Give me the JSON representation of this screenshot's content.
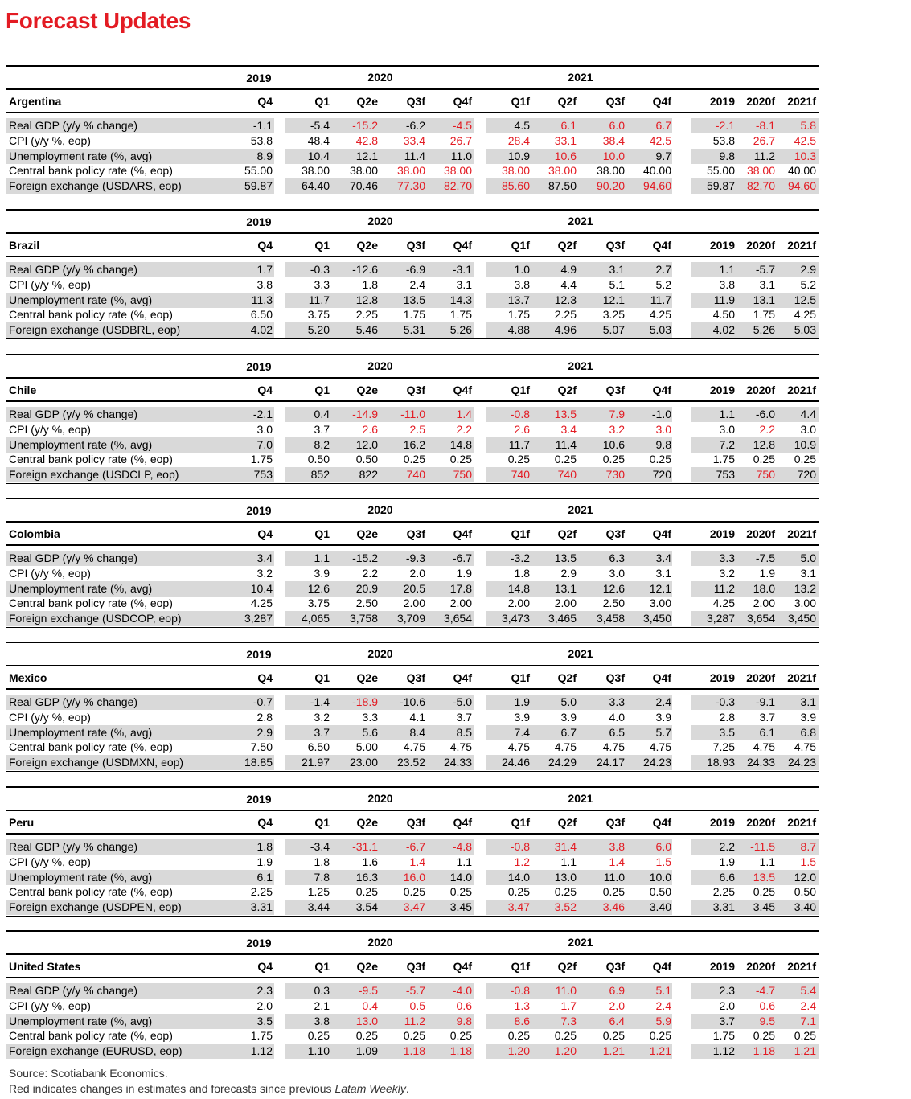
{
  "title": "Forecast Updates",
  "header": {
    "year_2019": "2019",
    "year_2020": "2020",
    "year_2021": "2021",
    "quarters": [
      "Q4",
      "Q1",
      "Q2e",
      "Q3f",
      "Q4f",
      "Q1f",
      "Q2f",
      "Q3f",
      "Q4f"
    ],
    "annual": [
      "2019",
      "2020f",
      "2021f"
    ]
  },
  "row_labels": [
    "Real GDP (y/y % change)",
    "CPI (y/y %, eop)",
    "Unemployment rate (%, avg)",
    "Central bank policy rate (%, eop)"
  ],
  "countries": [
    {
      "name": "Argentina",
      "fx_label": "Foreign exchange (USDARS, eop)",
      "rows": [
        {
          "v": [
            "-1.1",
            "-5.4",
            "-15.2",
            "-6.2",
            "-4.5",
            "4.5",
            "6.1",
            "6.0",
            "6.7",
            "-2.1",
            "-8.1",
            "5.8"
          ],
          "r": [
            0,
            0,
            1,
            0,
            1,
            0,
            1,
            1,
            1,
            1,
            1,
            1
          ]
        },
        {
          "v": [
            "53.8",
            "48.4",
            "42.8",
            "33.4",
            "26.7",
            "28.4",
            "33.1",
            "38.4",
            "42.5",
            "53.8",
            "26.7",
            "42.5"
          ],
          "r": [
            0,
            0,
            1,
            1,
            1,
            1,
            1,
            1,
            1,
            0,
            1,
            1
          ]
        },
        {
          "v": [
            "8.9",
            "10.4",
            "12.1",
            "11.4",
            "11.0",
            "10.9",
            "10.6",
            "10.0",
            "9.7",
            "9.8",
            "11.2",
            "10.3"
          ],
          "r": [
            0,
            0,
            0,
            0,
            0,
            0,
            1,
            1,
            0,
            0,
            0,
            1
          ]
        },
        {
          "v": [
            "55.00",
            "38.00",
            "38.00",
            "38.00",
            "38.00",
            "38.00",
            "38.00",
            "38.00",
            "40.00",
            "55.00",
            "38.00",
            "40.00"
          ],
          "r": [
            0,
            0,
            0,
            1,
            1,
            1,
            1,
            0,
            0,
            0,
            1,
            0
          ]
        },
        {
          "v": [
            "59.87",
            "64.40",
            "70.46",
            "77.30",
            "82.70",
            "85.60",
            "87.50",
            "90.20",
            "94.60",
            "59.87",
            "82.70",
            "94.60"
          ],
          "r": [
            0,
            0,
            0,
            1,
            1,
            1,
            0,
            1,
            1,
            0,
            1,
            1
          ]
        }
      ]
    },
    {
      "name": "Brazil",
      "fx_label": "Foreign exchange (USDBRL, eop)",
      "rows": [
        {
          "v": [
            "1.7",
            "-0.3",
            "-12.6",
            "-6.9",
            "-3.1",
            "1.0",
            "4.9",
            "3.1",
            "2.7",
            "1.1",
            "-5.7",
            "2.9"
          ],
          "r": [
            0,
            0,
            0,
            0,
            0,
            0,
            0,
            0,
            0,
            0,
            0,
            0
          ]
        },
        {
          "v": [
            "3.8",
            "3.3",
            "1.8",
            "2.4",
            "3.1",
            "3.8",
            "4.4",
            "5.1",
            "5.2",
            "3.8",
            "3.1",
            "5.2"
          ],
          "r": [
            0,
            0,
            0,
            0,
            0,
            0,
            0,
            0,
            0,
            0,
            0,
            0
          ]
        },
        {
          "v": [
            "11.3",
            "11.7",
            "12.8",
            "13.5",
            "14.3",
            "13.7",
            "12.3",
            "12.1",
            "11.7",
            "11.9",
            "13.1",
            "12.5"
          ],
          "r": [
            0,
            0,
            0,
            0,
            0,
            0,
            0,
            0,
            0,
            0,
            0,
            0
          ]
        },
        {
          "v": [
            "6.50",
            "3.75",
            "2.25",
            "1.75",
            "1.75",
            "1.75",
            "2.25",
            "3.25",
            "4.25",
            "4.50",
            "1.75",
            "4.25"
          ],
          "r": [
            0,
            0,
            0,
            0,
            0,
            0,
            0,
            0,
            0,
            0,
            0,
            0
          ]
        },
        {
          "v": [
            "4.02",
            "5.20",
            "5.46",
            "5.31",
            "5.26",
            "4.88",
            "4.96",
            "5.07",
            "5.03",
            "4.02",
            "5.26",
            "5.03"
          ],
          "r": [
            0,
            0,
            0,
            0,
            0,
            0,
            0,
            0,
            0,
            0,
            0,
            0
          ]
        }
      ]
    },
    {
      "name": "Chile",
      "fx_label": "Foreign exchange (USDCLP, eop)",
      "rows": [
        {
          "v": [
            "-2.1",
            "0.4",
            "-14.9",
            "-11.0",
            "1.4",
            "-0.8",
            "13.5",
            "7.9",
            "-1.0",
            "1.1",
            "-6.0",
            "4.4"
          ],
          "r": [
            0,
            0,
            1,
            1,
            1,
            1,
            1,
            1,
            0,
            0,
            0,
            0
          ]
        },
        {
          "v": [
            "3.0",
            "3.7",
            "2.6",
            "2.5",
            "2.2",
            "2.6",
            "3.4",
            "3.2",
            "3.0",
            "3.0",
            "2.2",
            "3.0"
          ],
          "r": [
            0,
            0,
            1,
            1,
            1,
            1,
            1,
            1,
            1,
            0,
            1,
            0
          ]
        },
        {
          "v": [
            "7.0",
            "8.2",
            "12.0",
            "16.2",
            "14.8",
            "11.7",
            "11.4",
            "10.6",
            "9.8",
            "7.2",
            "12.8",
            "10.9"
          ],
          "r": [
            0,
            0,
            0,
            0,
            0,
            0,
            0,
            0,
            0,
            0,
            0,
            0
          ]
        },
        {
          "v": [
            "1.75",
            "0.50",
            "0.50",
            "0.25",
            "0.25",
            "0.25",
            "0.25",
            "0.25",
            "0.25",
            "1.75",
            "0.25",
            "0.25"
          ],
          "r": [
            0,
            0,
            0,
            0,
            0,
            0,
            0,
            0,
            0,
            0,
            0,
            0
          ]
        },
        {
          "v": [
            "753",
            "852",
            "822",
            "740",
            "750",
            "740",
            "740",
            "730",
            "720",
            "753",
            "750",
            "720"
          ],
          "r": [
            0,
            0,
            0,
            1,
            1,
            1,
            1,
            1,
            0,
            0,
            1,
            0
          ]
        }
      ]
    },
    {
      "name": "Colombia",
      "fx_label": "Foreign exchange (USDCOP, eop)",
      "rows": [
        {
          "v": [
            "3.4",
            "1.1",
            "-15.2",
            "-9.3",
            "-6.7",
            "-3.2",
            "13.5",
            "6.3",
            "3.4",
            "3.3",
            "-7.5",
            "5.0"
          ],
          "r": [
            0,
            0,
            0,
            0,
            0,
            0,
            0,
            0,
            0,
            0,
            0,
            0
          ]
        },
        {
          "v": [
            "3.2",
            "3.9",
            "2.2",
            "2.0",
            "1.9",
            "1.8",
            "2.9",
            "3.0",
            "3.1",
            "3.2",
            "1.9",
            "3.1"
          ],
          "r": [
            0,
            0,
            0,
            0,
            0,
            0,
            0,
            0,
            0,
            0,
            0,
            0
          ]
        },
        {
          "v": [
            "10.4",
            "12.6",
            "20.9",
            "20.5",
            "17.8",
            "14.8",
            "13.1",
            "12.6",
            "12.1",
            "11.2",
            "18.0",
            "13.2"
          ],
          "r": [
            0,
            0,
            0,
            0,
            0,
            0,
            0,
            0,
            0,
            0,
            0,
            0
          ]
        },
        {
          "v": [
            "4.25",
            "3.75",
            "2.50",
            "2.00",
            "2.00",
            "2.00",
            "2.00",
            "2.50",
            "3.00",
            "4.25",
            "2.00",
            "3.00"
          ],
          "r": [
            0,
            0,
            0,
            0,
            0,
            0,
            0,
            0,
            0,
            0,
            0,
            0
          ]
        },
        {
          "v": [
            "3,287",
            "4,065",
            "3,758",
            "3,709",
            "3,654",
            "3,473",
            "3,465",
            "3,458",
            "3,450",
            "3,287",
            "3,654",
            "3,450"
          ],
          "r": [
            0,
            0,
            0,
            0,
            0,
            0,
            0,
            0,
            0,
            0,
            0,
            0
          ]
        }
      ]
    },
    {
      "name": "Mexico",
      "fx_label": "Foreign exchange (USDMXN, eop)",
      "rows": [
        {
          "v": [
            "-0.7",
            "-1.4",
            "-18.9",
            "-10.6",
            "-5.0",
            "1.9",
            "5.0",
            "3.3",
            "2.4",
            "-0.3",
            "-9.1",
            "3.1"
          ],
          "r": [
            0,
            0,
            1,
            0,
            0,
            0,
            0,
            0,
            0,
            0,
            0,
            0
          ]
        },
        {
          "v": [
            "2.8",
            "3.2",
            "3.3",
            "4.1",
            "3.7",
            "3.9",
            "3.9",
            "4.0",
            "3.9",
            "2.8",
            "3.7",
            "3.9"
          ],
          "r": [
            0,
            0,
            0,
            0,
            0,
            0,
            0,
            0,
            0,
            0,
            0,
            0
          ]
        },
        {
          "v": [
            "2.9",
            "3.7",
            "5.6",
            "8.4",
            "8.5",
            "7.4",
            "6.7",
            "6.5",
            "5.7",
            "3.5",
            "6.1",
            "6.8"
          ],
          "r": [
            0,
            0,
            0,
            0,
            0,
            0,
            0,
            0,
            0,
            0,
            0,
            0
          ]
        },
        {
          "v": [
            "7.50",
            "6.50",
            "5.00",
            "4.75",
            "4.75",
            "4.75",
            "4.75",
            "4.75",
            "4.75",
            "7.25",
            "4.75",
            "4.75"
          ],
          "r": [
            0,
            0,
            0,
            0,
            0,
            0,
            0,
            0,
            0,
            0,
            0,
            0
          ]
        },
        {
          "v": [
            "18.85",
            "21.97",
            "23.00",
            "23.52",
            "24.33",
            "24.46",
            "24.29",
            "24.17",
            "24.23",
            "18.93",
            "24.33",
            "24.23"
          ],
          "r": [
            0,
            0,
            0,
            0,
            0,
            0,
            0,
            0,
            0,
            0,
            0,
            0
          ]
        }
      ]
    },
    {
      "name": "Peru",
      "fx_label": "Foreign exchange (USDPEN, eop)",
      "rows": [
        {
          "v": [
            "1.8",
            "-3.4",
            "-31.1",
            "-6.7",
            "-4.8",
            "-0.8",
            "31.4",
            "3.8",
            "6.0",
            "2.2",
            "-11.5",
            "8.7"
          ],
          "r": [
            0,
            0,
            1,
            1,
            1,
            1,
            1,
            1,
            1,
            0,
            1,
            1
          ]
        },
        {
          "v": [
            "1.9",
            "1.8",
            "1.6",
            "1.4",
            "1.1",
            "1.2",
            "1.1",
            "1.4",
            "1.5",
            "1.9",
            "1.1",
            "1.5"
          ],
          "r": [
            0,
            0,
            0,
            1,
            0,
            1,
            0,
            1,
            1,
            0,
            0,
            1
          ]
        },
        {
          "v": [
            "6.1",
            "7.8",
            "16.3",
            "16.0",
            "14.0",
            "14.0",
            "13.0",
            "11.0",
            "10.0",
            "6.6",
            "13.5",
            "12.0"
          ],
          "r": [
            0,
            0,
            0,
            1,
            0,
            0,
            0,
            0,
            0,
            0,
            1,
            0
          ]
        },
        {
          "v": [
            "2.25",
            "1.25",
            "0.25",
            "0.25",
            "0.25",
            "0.25",
            "0.25",
            "0.25",
            "0.50",
            "2.25",
            "0.25",
            "0.50"
          ],
          "r": [
            0,
            0,
            0,
            0,
            0,
            0,
            0,
            0,
            0,
            0,
            0,
            0
          ]
        },
        {
          "v": [
            "3.31",
            "3.44",
            "3.54",
            "3.47",
            "3.45",
            "3.47",
            "3.52",
            "3.46",
            "3.40",
            "3.31",
            "3.45",
            "3.40"
          ],
          "r": [
            0,
            0,
            0,
            1,
            0,
            1,
            1,
            1,
            0,
            0,
            0,
            0
          ]
        }
      ]
    },
    {
      "name": "United States",
      "fx_label": "Foreign exchange (EURUSD, eop)",
      "rows": [
        {
          "v": [
            "2.3",
            "0.3",
            "-9.5",
            "-5.7",
            "-4.0",
            "-0.8",
            "11.0",
            "6.9",
            "5.1",
            "2.3",
            "-4.7",
            "5.4"
          ],
          "r": [
            0,
            0,
            1,
            1,
            1,
            1,
            1,
            1,
            1,
            0,
            1,
            1
          ]
        },
        {
          "v": [
            "2.0",
            "2.1",
            "0.4",
            "0.5",
            "0.6",
            "1.3",
            "1.7",
            "2.0",
            "2.4",
            "2.0",
            "0.6",
            "2.4"
          ],
          "r": [
            0,
            0,
            1,
            1,
            1,
            1,
            1,
            1,
            1,
            0,
            1,
            1
          ]
        },
        {
          "v": [
            "3.5",
            "3.8",
            "13.0",
            "11.2",
            "9.8",
            "8.6",
            "7.3",
            "6.4",
            "5.9",
            "3.7",
            "9.5",
            "7.1"
          ],
          "r": [
            0,
            0,
            1,
            1,
            1,
            1,
            1,
            1,
            1,
            0,
            1,
            1
          ]
        },
        {
          "v": [
            "1.75",
            "0.25",
            "0.25",
            "0.25",
            "0.25",
            "0.25",
            "0.25",
            "0.25",
            "0.25",
            "1.75",
            "0.25",
            "0.25"
          ],
          "r": [
            0,
            0,
            0,
            0,
            0,
            0,
            0,
            0,
            0,
            0,
            0,
            0
          ]
        },
        {
          "v": [
            "1.12",
            "1.10",
            "1.09",
            "1.18",
            "1.18",
            "1.20",
            "1.20",
            "1.21",
            "1.21",
            "1.12",
            "1.18",
            "1.21"
          ],
          "r": [
            0,
            0,
            0,
            1,
            1,
            1,
            1,
            1,
            1,
            0,
            1,
            1
          ]
        }
      ]
    }
  ],
  "footer": {
    "source": "Source: Scotiabank Economics.",
    "note_prefix": "Red indicates changes in estimates and forecasts since previous ",
    "note_italic": "Latam Weekly",
    "note_suffix": "."
  }
}
